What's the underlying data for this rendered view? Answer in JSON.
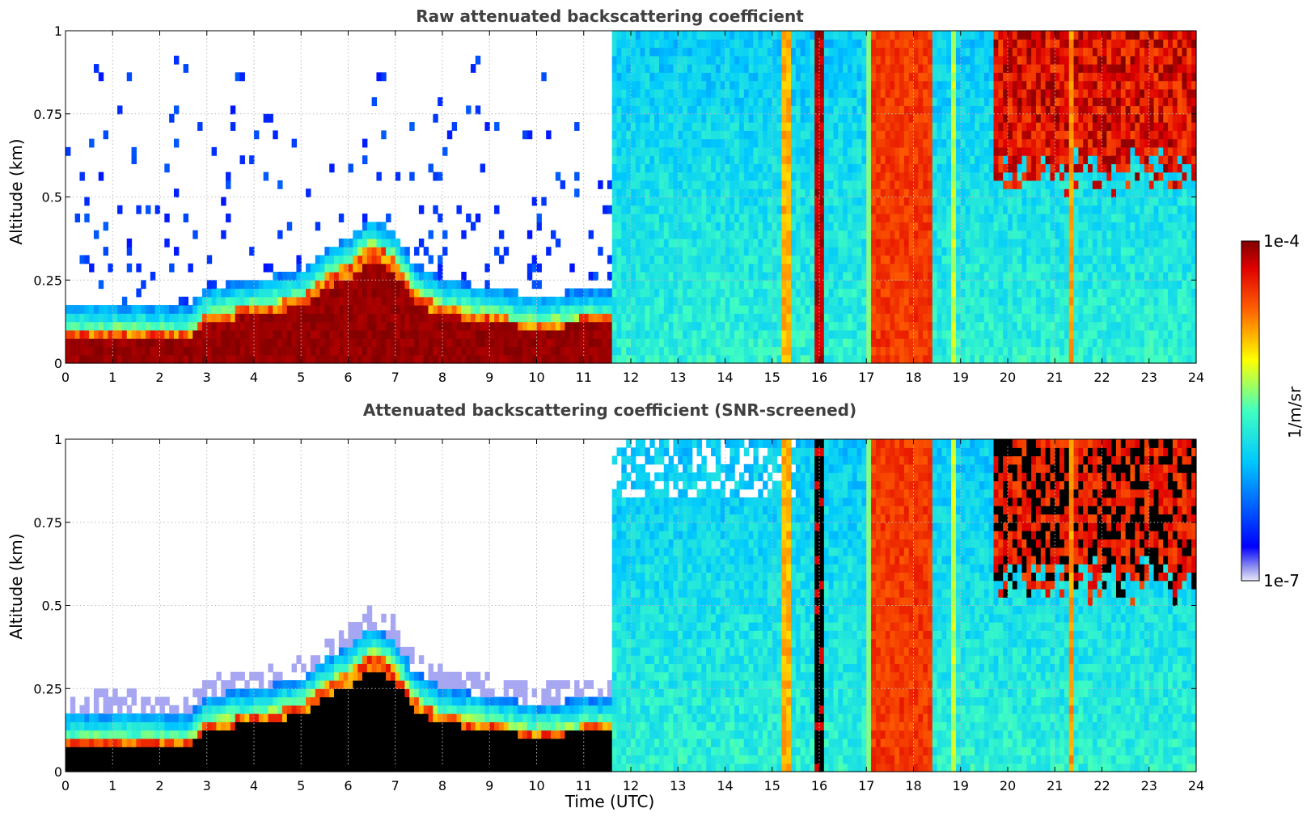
{
  "chart_data": [
    {
      "type": "heatmap",
      "title": "Raw attenuated backscattering coefficient",
      "xlabel": "",
      "ylabel": "Altitude (km)",
      "xlim": [
        0,
        24
      ],
      "ylim": [
        0,
        1
      ],
      "xticks": [
        "0",
        "1",
        "2",
        "3",
        "4",
        "5",
        "6",
        "7",
        "8",
        "9",
        "10",
        "11",
        "12",
        "13",
        "14",
        "15",
        "16",
        "17",
        "18",
        "19",
        "20",
        "21",
        "22",
        "23",
        "24"
      ],
      "yticks": [
        "0",
        "0.25",
        "0.5",
        "0.75",
        "1"
      ],
      "grid": true,
      "screened": false,
      "layer_top_km": [
        [
          0,
          0.095
        ],
        [
          1,
          0.1
        ],
        [
          2,
          0.095
        ],
        [
          2.6,
          0.09
        ],
        [
          3,
          0.15
        ],
        [
          4,
          0.17
        ],
        [
          5,
          0.2
        ],
        [
          5.5,
          0.26
        ],
        [
          6,
          0.3
        ],
        [
          6.5,
          0.36
        ],
        [
          7,
          0.32
        ],
        [
          7.4,
          0.22
        ],
        [
          8,
          0.17
        ],
        [
          9,
          0.15
        ],
        [
          10,
          0.12
        ],
        [
          11,
          0.14
        ],
        [
          11.6,
          0.14
        ]
      ],
      "segments": [
        {
          "x": [
            0,
            2.6
          ],
          "description": "dense layer below 0.1 km, sparse noise aloft"
        },
        {
          "x": [
            2.6,
            11.6
          ],
          "description": "aerosol layer rising to ~0.4 km"
        },
        {
          "x": [
            11.6,
            24
          ],
          "description": "daytime noise and cloud columns"
        }
      ],
      "cloud_columns": [
        {
          "x": [
            15.25,
            15.4
          ],
          "intensity": 0.72
        },
        {
          "x": [
            15.95,
            16.15
          ],
          "intensity": 0.95
        },
        {
          "x": [
            17.15,
            18.45
          ],
          "intensity": 0.85
        },
        {
          "x": [
            18.8,
            18.9
          ],
          "intensity": 0.6
        },
        {
          "x": [
            21.3,
            21.45
          ],
          "intensity": 0.75
        }
      ]
    },
    {
      "type": "heatmap",
      "title": "Attenuated backscattering coefficient (SNR-screened)",
      "xlabel": "Time (UTC)",
      "ylabel": "Altitude (km)",
      "xlim": [
        0,
        24
      ],
      "ylim": [
        0,
        1
      ],
      "xticks": [
        "0",
        "1",
        "2",
        "3",
        "4",
        "5",
        "6",
        "7",
        "8",
        "9",
        "10",
        "11",
        "12",
        "13",
        "14",
        "15",
        "16",
        "17",
        "18",
        "19",
        "20",
        "21",
        "22",
        "23",
        "24"
      ],
      "yticks": [
        "0",
        "0.25",
        "0.5",
        "0.75",
        "1"
      ],
      "grid": true,
      "screened": true,
      "saturated_color": "#000000"
    }
  ],
  "colorbar": {
    "label": "1/m/sr",
    "max_label": "1e-4",
    "min_label": "1e-7",
    "scale": "log",
    "colormap": "jet"
  },
  "colors": {
    "background": "#ffffff",
    "grid": "#bbbbbb",
    "title": "#404040"
  }
}
